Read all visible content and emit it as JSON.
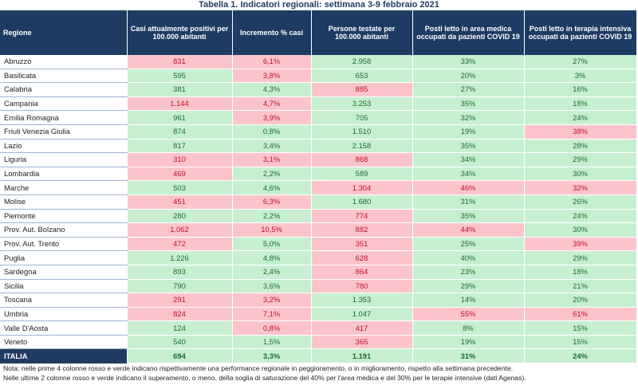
{
  "title": "Tabella 1. Indicatori regionali: settimana 3-9 febbraio 2021",
  "headers": [
    "Regione",
    "Casi attualmente positivi per 100.000 abitanti",
    "Incremento % casi",
    "Persone testate per 100.000 abitanti",
    "Posti letto in area medica occupati da pazienti COVID 19",
    "Posti letto in terapia intensiva occupati da pazienti COVID 19"
  ],
  "rows": [
    {
      "region": "Abruzzo",
      "cells": [
        {
          "v": "831",
          "c": "red"
        },
        {
          "v": "6,1%",
          "c": "red"
        },
        {
          "v": "2.958",
          "c": "green"
        },
        {
          "v": "33%",
          "c": "green"
        },
        {
          "v": "27%",
          "c": "green"
        }
      ]
    },
    {
      "region": "Basilicata",
      "cells": [
        {
          "v": "595",
          "c": "green"
        },
        {
          "v": "3,8%",
          "c": "red"
        },
        {
          "v": "653",
          "c": "green"
        },
        {
          "v": "20%",
          "c": "green"
        },
        {
          "v": "3%",
          "c": "green"
        }
      ]
    },
    {
      "region": "Calabria",
      "cells": [
        {
          "v": "381",
          "c": "green"
        },
        {
          "v": "4,3%",
          "c": "green"
        },
        {
          "v": "885",
          "c": "red"
        },
        {
          "v": "27%",
          "c": "green"
        },
        {
          "v": "16%",
          "c": "green"
        }
      ]
    },
    {
      "region": "Campania",
      "cells": [
        {
          "v": "1.144",
          "c": "red"
        },
        {
          "v": "4,7%",
          "c": "red"
        },
        {
          "v": "3.253",
          "c": "green"
        },
        {
          "v": "35%",
          "c": "green"
        },
        {
          "v": "18%",
          "c": "green"
        }
      ]
    },
    {
      "region": "Emilia Romagna",
      "cells": [
        {
          "v": "961",
          "c": "green"
        },
        {
          "v": "3,9%",
          "c": "red"
        },
        {
          "v": "705",
          "c": "green"
        },
        {
          "v": "32%",
          "c": "green"
        },
        {
          "v": "24%",
          "c": "green"
        }
      ]
    },
    {
      "region": "Friuli Venezia Giulia",
      "cells": [
        {
          "v": "874",
          "c": "green"
        },
        {
          "v": "0,8%",
          "c": "green"
        },
        {
          "v": "1.510",
          "c": "green"
        },
        {
          "v": "19%",
          "c": "green"
        },
        {
          "v": "38%",
          "c": "red"
        }
      ]
    },
    {
      "region": "Lazio",
      "cells": [
        {
          "v": "817",
          "c": "green"
        },
        {
          "v": "3,4%",
          "c": "green"
        },
        {
          "v": "2.158",
          "c": "green"
        },
        {
          "v": "35%",
          "c": "green"
        },
        {
          "v": "28%",
          "c": "green"
        }
      ]
    },
    {
      "region": "Liguria",
      "cells": [
        {
          "v": "310",
          "c": "red"
        },
        {
          "v": "3,1%",
          "c": "red"
        },
        {
          "v": "868",
          "c": "red"
        },
        {
          "v": "34%",
          "c": "green"
        },
        {
          "v": "29%",
          "c": "green"
        }
      ]
    },
    {
      "region": "Lombardia",
      "cells": [
        {
          "v": "469",
          "c": "red"
        },
        {
          "v": "2,2%",
          "c": "green"
        },
        {
          "v": "589",
          "c": "green"
        },
        {
          "v": "34%",
          "c": "green"
        },
        {
          "v": "30%",
          "c": "green"
        }
      ]
    },
    {
      "region": "Marche",
      "cells": [
        {
          "v": "503",
          "c": "green"
        },
        {
          "v": "4,6%",
          "c": "green"
        },
        {
          "v": "1.304",
          "c": "red"
        },
        {
          "v": "46%",
          "c": "red"
        },
        {
          "v": "32%",
          "c": "red"
        }
      ]
    },
    {
      "region": "Molise",
      "cells": [
        {
          "v": "451",
          "c": "red"
        },
        {
          "v": "6,3%",
          "c": "red"
        },
        {
          "v": "1.680",
          "c": "green"
        },
        {
          "v": "31%",
          "c": "green"
        },
        {
          "v": "26%",
          "c": "green"
        }
      ]
    },
    {
      "region": "Piemonte",
      "cells": [
        {
          "v": "280",
          "c": "green"
        },
        {
          "v": "2,2%",
          "c": "green"
        },
        {
          "v": "774",
          "c": "red"
        },
        {
          "v": "35%",
          "c": "green"
        },
        {
          "v": "24%",
          "c": "green"
        }
      ]
    },
    {
      "region": "Prov. Aut. Bolzano",
      "cells": [
        {
          "v": "1.062",
          "c": "red"
        },
        {
          "v": "10,5%",
          "c": "red"
        },
        {
          "v": "882",
          "c": "red"
        },
        {
          "v": "44%",
          "c": "red"
        },
        {
          "v": "30%",
          "c": "green"
        }
      ]
    },
    {
      "region": "Prov. Aut. Trento",
      "cells": [
        {
          "v": "472",
          "c": "red"
        },
        {
          "v": "5,0%",
          "c": "green"
        },
        {
          "v": "351",
          "c": "red"
        },
        {
          "v": "25%",
          "c": "green"
        },
        {
          "v": "39%",
          "c": "red"
        }
      ]
    },
    {
      "region": "Puglia",
      "cells": [
        {
          "v": "1.226",
          "c": "green"
        },
        {
          "v": "4,8%",
          "c": "green"
        },
        {
          "v": "628",
          "c": "red"
        },
        {
          "v": "40%",
          "c": "green"
        },
        {
          "v": "29%",
          "c": "green"
        }
      ]
    },
    {
      "region": "Sardegna",
      "cells": [
        {
          "v": "893",
          "c": "green"
        },
        {
          "v": "2,4%",
          "c": "green"
        },
        {
          "v": "864",
          "c": "red"
        },
        {
          "v": "23%",
          "c": "green"
        },
        {
          "v": "18%",
          "c": "green"
        }
      ]
    },
    {
      "region": "Sicilia",
      "cells": [
        {
          "v": "790",
          "c": "green"
        },
        {
          "v": "3,6%",
          "c": "green"
        },
        {
          "v": "780",
          "c": "red"
        },
        {
          "v": "29%",
          "c": "green"
        },
        {
          "v": "21%",
          "c": "green"
        }
      ]
    },
    {
      "region": "Toscana",
      "cells": [
        {
          "v": "291",
          "c": "red"
        },
        {
          "v": "3,2%",
          "c": "red"
        },
        {
          "v": "1.353",
          "c": "green"
        },
        {
          "v": "14%",
          "c": "green"
        },
        {
          "v": "20%",
          "c": "green"
        }
      ]
    },
    {
      "region": "Umbria",
      "cells": [
        {
          "v": "824",
          "c": "red"
        },
        {
          "v": "7,1%",
          "c": "red"
        },
        {
          "v": "1.047",
          "c": "green"
        },
        {
          "v": "55%",
          "c": "red"
        },
        {
          "v": "61%",
          "c": "red"
        }
      ]
    },
    {
      "region": "Valle D'Aosta",
      "cells": [
        {
          "v": "124",
          "c": "green"
        },
        {
          "v": "0,8%",
          "c": "red"
        },
        {
          "v": "417",
          "c": "red"
        },
        {
          "v": "8%",
          "c": "green"
        },
        {
          "v": "15%",
          "c": "green"
        }
      ]
    },
    {
      "region": "Veneto",
      "cells": [
        {
          "v": "540",
          "c": "green"
        },
        {
          "v": "1,5%",
          "c": "green"
        },
        {
          "v": "365",
          "c": "red"
        },
        {
          "v": "19%",
          "c": "green"
        },
        {
          "v": "15%",
          "c": "green"
        }
      ]
    }
  ],
  "total": {
    "region": "ITALIA",
    "cells": [
      "694",
      "3,3%",
      "1.191",
      "31%",
      "24%"
    ]
  },
  "notes": [
    "Nota: nelle prime 4 colonne rosso e verde indicano rispettivamente una performance regionale in peggioramento, o in miglioramento, rispetto alla settimana precedente.",
    "Nelle ultime 2 colonne rosso e verde indicano il superamento, o meno, della soglia di saturazione del 40% per l'area medica e del 30% per le terapie intensive (dati Agenas)."
  ],
  "colors": {
    "header": "#1f3b63",
    "red": "#fbc4cb",
    "green": "#c7efcf"
  }
}
